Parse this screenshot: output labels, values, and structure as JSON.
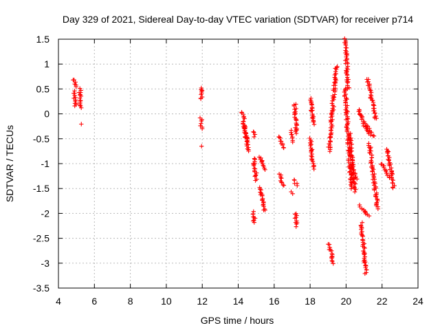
{
  "chart_data": {
    "type": "scatter",
    "title": "Day 329 of 2021, Sidereal Day-to-day VTEC variation (SDTVAR) for receiver p714",
    "xlabel": "GPS time / hours",
    "ylabel": "SDTVAR / TECUs",
    "xlim": [
      4,
      24
    ],
    "ylim": [
      -3.5,
      1.5
    ],
    "xticks": [
      4,
      6,
      8,
      10,
      12,
      14,
      16,
      18,
      20,
      22,
      24
    ],
    "yticks": [
      -3.5,
      -3,
      -2.5,
      -2,
      -1.5,
      -1,
      -0.5,
      0,
      0.5,
      1,
      1.5
    ],
    "xtick_labels": [
      "4",
      "6",
      "8",
      "10",
      "12",
      "14",
      "16",
      "18",
      "20",
      "22",
      "24"
    ],
    "ytick_labels": [
      "-3.5",
      "-3",
      "-2.5",
      "-2",
      "-1.5",
      "-1",
      "-0.5",
      "0",
      "0.5",
      "1",
      "1.5"
    ],
    "grid": true,
    "marker": "+",
    "color": "#ff0000",
    "segments": [
      {
        "x0": 4.88,
        "x1": 4.96,
        "y0": 0.7,
        "y1": 0.55
      },
      {
        "x0": 4.86,
        "x1": 4.95,
        "y0": 0.45,
        "y1": 0.15
      },
      {
        "x0": 5.2,
        "x1": 5.22,
        "y0": 0.5,
        "y1": 0.12
      },
      {
        "x0": 5.23,
        "x1": 5.23,
        "y0": -0.2,
        "y1": -0.2
      },
      {
        "x0": 11.93,
        "x1": 11.97,
        "y0": 0.52,
        "y1": 0.3
      },
      {
        "x0": 11.92,
        "x1": 11.95,
        "y0": -0.1,
        "y1": -0.28
      },
      {
        "x0": 11.93,
        "x1": 11.93,
        "y0": -0.66,
        "y1": -0.66
      },
      {
        "x0": 14.25,
        "x1": 14.55,
        "y0": 0.02,
        "y1": -0.75
      },
      {
        "x0": 14.3,
        "x1": 14.5,
        "y0": -0.2,
        "y1": -0.55
      },
      {
        "x0": 14.88,
        "x1": 14.93,
        "y0": -0.35,
        "y1": -0.45
      },
      {
        "x0": 14.86,
        "x1": 15.0,
        "y0": -0.88,
        "y1": -1.32
      },
      {
        "x0": 14.85,
        "x1": 14.9,
        "y0": -1.98,
        "y1": -2.2
      },
      {
        "x0": 15.2,
        "x1": 15.45,
        "y0": -0.85,
        "y1": -1.1
      },
      {
        "x0": 15.2,
        "x1": 15.45,
        "y0": -1.48,
        "y1": -1.95
      },
      {
        "x0": 16.3,
        "x1": 16.5,
        "y0": -0.45,
        "y1": -0.7
      },
      {
        "x0": 16.3,
        "x1": 16.5,
        "y0": -1.2,
        "y1": -1.45
      },
      {
        "x0": 16.9,
        "x1": 17.0,
        "y0": -0.35,
        "y1": -0.55
      },
      {
        "x0": 16.9,
        "x1": 17.0,
        "y0": -1.58,
        "y1": -1.62
      },
      {
        "x0": 17.15,
        "x1": 17.25,
        "y0": 0.2,
        "y1": -0.4
      },
      {
        "x0": 17.15,
        "x1": 17.25,
        "y0": -1.32,
        "y1": -1.45
      },
      {
        "x0": 17.18,
        "x1": 17.25,
        "y0": -2.0,
        "y1": -2.25
      },
      {
        "x0": 18.0,
        "x1": 18.2,
        "y0": 0.32,
        "y1": -0.2
      },
      {
        "x0": 18.0,
        "x1": 18.2,
        "y0": -0.5,
        "y1": -1.1
      },
      {
        "x0": 19.05,
        "x1": 19.45,
        "y0": -0.75,
        "y1": 0.95
      },
      {
        "x0": 19.05,
        "x1": 19.3,
        "y0": -2.62,
        "y1": -3.0
      },
      {
        "x0": 19.95,
        "x1": 20.12,
        "y0": 1.5,
        "y1": 0.5
      },
      {
        "x0": 19.95,
        "x1": 20.3,
        "y0": 0.5,
        "y1": -1.5
      },
      {
        "x0": 20.2,
        "x1": 20.5,
        "y0": -0.4,
        "y1": -1.55
      },
      {
        "x0": 20.3,
        "x1": 20.55,
        "y0": -1.0,
        "y1": -1.3
      },
      {
        "x0": 20.7,
        "x1": 21.2,
        "y0": 0.1,
        "y1": -0.4
      },
      {
        "x0": 20.75,
        "x1": 21.25,
        "y0": -1.85,
        "y1": -2.05
      },
      {
        "x0": 20.85,
        "x1": 21.1,
        "y0": -2.2,
        "y1": -3.2
      },
      {
        "x0": 21.2,
        "x1": 21.65,
        "y0": 0.7,
        "y1": -0.1
      },
      {
        "x0": 21.1,
        "x1": 21.5,
        "y0": -0.2,
        "y1": -0.45
      },
      {
        "x0": 21.3,
        "x1": 21.75,
        "y0": -0.6,
        "y1": -1.9
      },
      {
        "x0": 22.0,
        "x1": 22.45,
        "y0": -1.0,
        "y1": -1.3
      },
      {
        "x0": 22.3,
        "x1": 22.65,
        "y0": -0.7,
        "y1": -1.5
      }
    ]
  }
}
